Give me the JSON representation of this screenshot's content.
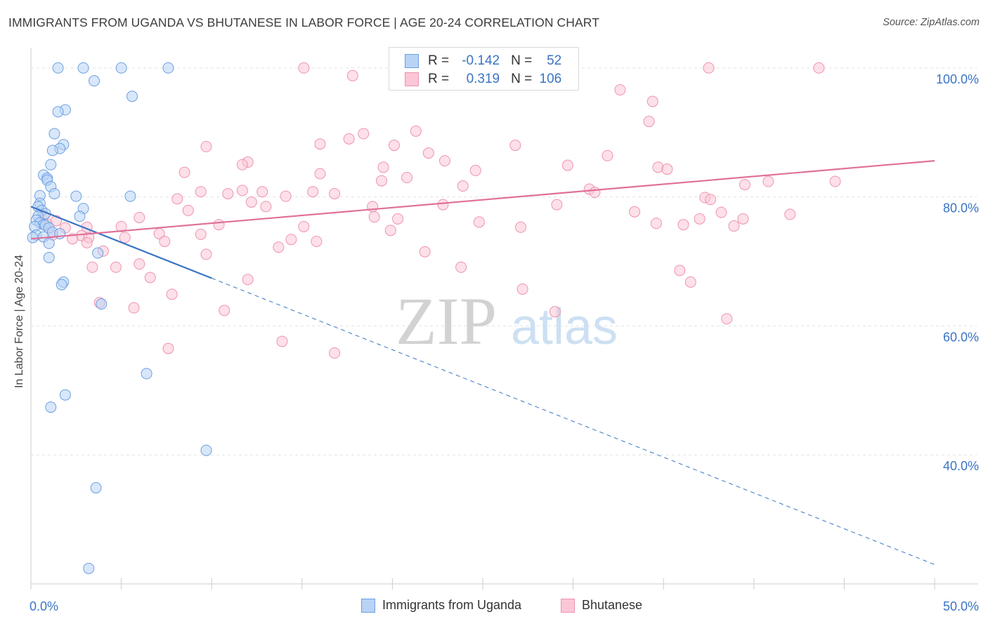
{
  "title": "IMMIGRANTS FROM UGANDA VS BHUTANESE IN LABOR FORCE | AGE 20-24 CORRELATION CHART",
  "source": "Source: ZipAtlas.com",
  "watermark": {
    "zip": "ZIP",
    "atlas": "atlas"
  },
  "legend": {
    "r_label": "R =",
    "n_label": "N =",
    "series": [
      {
        "name": "Immigrants from Uganda",
        "r": "-0.142",
        "n": "52",
        "fill": "#b8d3f5",
        "stroke": "#6d9fe0"
      },
      {
        "name": "Bhutanese",
        "r": "0.319",
        "n": "106",
        "fill": "#fbc6d6",
        "stroke": "#ee93b0"
      }
    ]
  },
  "chart_data": {
    "type": "scatter",
    "title": "IMMIGRANTS FROM UGANDA VS BHUTANESE IN LABOR FORCE | AGE 20-24 CORRELATION CHART",
    "xlabel": "",
    "ylabel": "In Labor Force | Age 20-24",
    "xlim": [
      0,
      50
    ],
    "ylim": [
      20,
      104
    ],
    "x_tick_labels": [
      {
        "value": 0,
        "label": "0.0%"
      },
      {
        "value": 50,
        "label": "50.0%"
      }
    ],
    "y_tick_labels": [
      {
        "value": 100,
        "label": "100.0%"
      },
      {
        "value": 80,
        "label": "80.0%"
      },
      {
        "value": 60,
        "label": "60.0%"
      },
      {
        "value": 40,
        "label": "40.0%"
      }
    ],
    "series": [
      {
        "name": "Immigrants from Uganda",
        "color": "#3a74c4",
        "marker_fill": "#b8d3f5",
        "marker_stroke": "#6d9fe0",
        "trend": {
          "x": [
            0,
            10
          ],
          "y": [
            78.5,
            67.4
          ],
          "dashed_to": [
            50,
            23.0
          ]
        },
        "points": [
          [
            1.5,
            100
          ],
          [
            2.9,
            100
          ],
          [
            5.0,
            100
          ],
          [
            7.6,
            100
          ],
          [
            3.5,
            98.0
          ],
          [
            5.6,
            95.6
          ],
          [
            1.9,
            93.5
          ],
          [
            1.5,
            93.2
          ],
          [
            1.3,
            89.8
          ],
          [
            1.8,
            88.1
          ],
          [
            1.6,
            87.5
          ],
          [
            1.2,
            87.2
          ],
          [
            1.1,
            85.0
          ],
          [
            0.7,
            83.4
          ],
          [
            0.9,
            82.9
          ],
          [
            0.9,
            82.6
          ],
          [
            1.1,
            81.6
          ],
          [
            1.3,
            80.5
          ],
          [
            2.5,
            80.1
          ],
          [
            5.5,
            80.1
          ],
          [
            0.5,
            80.2
          ],
          [
            0.5,
            79.0
          ],
          [
            0.4,
            78.5
          ],
          [
            2.9,
            78.2
          ],
          [
            0.6,
            77.9
          ],
          [
            0.8,
            77.4
          ],
          [
            0.4,
            77.0
          ],
          [
            2.7,
            77.0
          ],
          [
            0.3,
            76.4
          ],
          [
            0.5,
            76.0
          ],
          [
            0.7,
            75.7
          ],
          [
            0.2,
            75.4
          ],
          [
            0.8,
            75.6
          ],
          [
            1.0,
            75.2
          ],
          [
            1.2,
            74.5
          ],
          [
            1.6,
            74.3
          ],
          [
            0.3,
            74.1
          ],
          [
            0.7,
            73.8
          ],
          [
            0.1,
            73.7
          ],
          [
            1.0,
            72.8
          ],
          [
            3.7,
            71.3
          ],
          [
            1.0,
            70.6
          ],
          [
            1.8,
            66.8
          ],
          [
            1.7,
            66.4
          ],
          [
            3.9,
            63.4
          ],
          [
            6.4,
            52.6
          ],
          [
            1.9,
            49.3
          ],
          [
            1.1,
            47.4
          ],
          [
            9.7,
            40.7
          ],
          [
            3.6,
            34.9
          ],
          [
            3.2,
            22.4
          ]
        ]
      },
      {
        "name": "Bhutanese",
        "color": "#e07098",
        "marker_fill": "#fbc6d6",
        "marker_stroke": "#ee93b0",
        "trend": {
          "x": [
            0,
            50
          ],
          "y": [
            73.5,
            85.6
          ]
        },
        "points": [
          [
            15.1,
            100
          ],
          [
            37.5,
            100
          ],
          [
            43.6,
            100
          ],
          [
            17.8,
            98.8
          ],
          [
            32.6,
            96.6
          ],
          [
            34.4,
            94.8
          ],
          [
            34.2,
            91.7
          ],
          [
            21.3,
            90.2
          ],
          [
            18.4,
            89.8
          ],
          [
            17.6,
            89.0
          ],
          [
            16.0,
            88.2
          ],
          [
            20.1,
            88.0
          ],
          [
            26.8,
            88.0
          ],
          [
            9.7,
            87.8
          ],
          [
            22.0,
            86.8
          ],
          [
            31.9,
            86.4
          ],
          [
            22.9,
            85.6
          ],
          [
            12.0,
            85.4
          ],
          [
            11.7,
            85.0
          ],
          [
            29.7,
            84.9
          ],
          [
            19.5,
            84.6
          ],
          [
            34.7,
            84.6
          ],
          [
            35.2,
            84.3
          ],
          [
            24.6,
            84.1
          ],
          [
            8.5,
            83.8
          ],
          [
            16.0,
            83.6
          ],
          [
            20.8,
            83.0
          ],
          [
            19.4,
            82.5
          ],
          [
            44.5,
            82.4
          ],
          [
            40.8,
            82.4
          ],
          [
            39.5,
            81.9
          ],
          [
            23.9,
            81.7
          ],
          [
            30.9,
            81.2
          ],
          [
            11.7,
            81.0
          ],
          [
            12.8,
            80.8
          ],
          [
            9.4,
            80.8
          ],
          [
            15.6,
            80.8
          ],
          [
            10.9,
            80.5
          ],
          [
            31.2,
            80.7
          ],
          [
            16.8,
            80.5
          ],
          [
            14.1,
            80.1
          ],
          [
            8.1,
            79.7
          ],
          [
            37.3,
            79.9
          ],
          [
            37.6,
            79.6
          ],
          [
            12.2,
            79.2
          ],
          [
            18.9,
            78.5
          ],
          [
            13.0,
            78.5
          ],
          [
            22.8,
            78.8
          ],
          [
            29.1,
            78.8
          ],
          [
            8.7,
            77.9
          ],
          [
            33.4,
            77.7
          ],
          [
            38.2,
            77.6
          ],
          [
            42.0,
            77.3
          ],
          [
            19.0,
            76.9
          ],
          [
            20.3,
            76.6
          ],
          [
            6.0,
            76.8
          ],
          [
            37.0,
            76.6
          ],
          [
            39.4,
            76.6
          ],
          [
            24.8,
            76.1
          ],
          [
            34.6,
            75.9
          ],
          [
            10.4,
            75.7
          ],
          [
            38.9,
            75.5
          ],
          [
            15.1,
            75.4
          ],
          [
            27.1,
            75.3
          ],
          [
            36.1,
            75.7
          ],
          [
            5.0,
            75.4
          ],
          [
            3.1,
            75.3
          ],
          [
            1.9,
            75.2
          ],
          [
            19.9,
            74.8
          ],
          [
            7.1,
            74.3
          ],
          [
            9.4,
            74.2
          ],
          [
            2.8,
            74.0
          ],
          [
            1.2,
            74.1
          ],
          [
            3.2,
            73.7
          ],
          [
            2.3,
            73.5
          ],
          [
            5.2,
            73.7
          ],
          [
            7.4,
            73.1
          ],
          [
            14.4,
            73.4
          ],
          [
            15.8,
            73.1
          ],
          [
            3.1,
            72.9
          ],
          [
            13.7,
            72.2
          ],
          [
            4.0,
            71.6
          ],
          [
            21.8,
            71.5
          ],
          [
            9.7,
            71.1
          ],
          [
            6.0,
            69.6
          ],
          [
            3.4,
            69.1
          ],
          [
            4.7,
            69.1
          ],
          [
            23.8,
            69.1
          ],
          [
            35.9,
            68.6
          ],
          [
            6.6,
            67.5
          ],
          [
            12.0,
            67.2
          ],
          [
            36.5,
            66.8
          ],
          [
            27.2,
            65.7
          ],
          [
            7.8,
            64.9
          ],
          [
            3.8,
            63.6
          ],
          [
            5.7,
            62.8
          ],
          [
            10.7,
            62.4
          ],
          [
            29.0,
            62.2
          ],
          [
            38.5,
            61.1
          ],
          [
            13.9,
            57.6
          ],
          [
            7.6,
            56.5
          ],
          [
            16.8,
            55.8
          ],
          [
            0.9,
            75.8
          ],
          [
            1.4,
            76.3
          ],
          [
            0.7,
            77.1
          ]
        ]
      }
    ]
  }
}
